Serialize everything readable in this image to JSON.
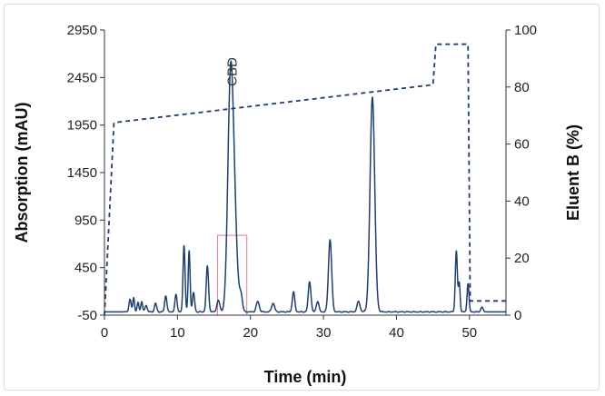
{
  "chart_data": {
    "type": "line",
    "title": "",
    "xlabel": "Time (min)",
    "ylabel_left": "Absorption (mAU)",
    "ylabel_right": "Eluent B (%)",
    "xlim": [
      0,
      55
    ],
    "ylim_left": [
      -50,
      2950
    ],
    "ylim_right": [
      0,
      100
    ],
    "x_ticks": [
      "0",
      "10",
      "20",
      "30",
      "40",
      "50"
    ],
    "y_left_ticks": [
      "-50",
      "450",
      "950",
      "1450",
      "1950",
      "2450",
      "2950"
    ],
    "y_right_ticks": [
      "0",
      "20",
      "40",
      "60",
      "80",
      "100"
    ],
    "grid": false,
    "annotations": [
      {
        "text": "CBD",
        "x": 17.5,
        "y": 2510,
        "rotation": -90
      }
    ],
    "highlight_box": {
      "x0": 15.5,
      "x1": 19.5,
      "y0": -50,
      "y1": 790,
      "color": "#e87a8a"
    },
    "series": [
      {
        "axis": "left",
        "style": "solid",
        "color": "#1f3f6e",
        "peaks": [
          {
            "x": 3.5,
            "h": 130,
            "w": 0.15
          },
          {
            "x": 4.0,
            "h": 150,
            "w": 0.12
          },
          {
            "x": 4.6,
            "h": 100,
            "w": 0.12
          },
          {
            "x": 5.1,
            "h": 110,
            "w": 0.12
          },
          {
            "x": 5.7,
            "h": 70,
            "w": 0.15
          },
          {
            "x": 7.0,
            "h": 90,
            "w": 0.15
          },
          {
            "x": 8.4,
            "h": 170,
            "w": 0.15
          },
          {
            "x": 9.8,
            "h": 180,
            "w": 0.15
          },
          {
            "x": 10.9,
            "h": 700,
            "w": 0.14
          },
          {
            "x": 11.6,
            "h": 640,
            "w": 0.13
          },
          {
            "x": 12.2,
            "h": 200,
            "w": 0.15
          },
          {
            "x": 14.1,
            "h": 480,
            "w": 0.16
          },
          {
            "x": 15.6,
            "h": 120,
            "w": 0.2
          },
          {
            "x": 17.2,
            "h": 1780,
            "w": 0.35
          },
          {
            "x": 17.65,
            "h": 1300,
            "w": 0.42
          },
          {
            "x": 18.7,
            "h": 160,
            "w": 0.2
          },
          {
            "x": 21.0,
            "h": 110,
            "w": 0.2
          },
          {
            "x": 23.1,
            "h": 90,
            "w": 0.2
          },
          {
            "x": 25.9,
            "h": 210,
            "w": 0.17
          },
          {
            "x": 28.1,
            "h": 320,
            "w": 0.18
          },
          {
            "x": 29.2,
            "h": 110,
            "w": 0.18
          },
          {
            "x": 30.9,
            "h": 760,
            "w": 0.22
          },
          {
            "x": 34.8,
            "h": 110,
            "w": 0.2
          },
          {
            "x": 36.7,
            "h": 2260,
            "w": 0.32
          },
          {
            "x": 48.2,
            "h": 640,
            "w": 0.14
          },
          {
            "x": 48.6,
            "h": 300,
            "w": 0.12
          },
          {
            "x": 49.8,
            "h": 300,
            "w": 0.13
          },
          {
            "x": 51.7,
            "h": 50,
            "w": 0.15
          }
        ]
      },
      {
        "axis": "right",
        "style": "dashed",
        "color": "#1f3f6e",
        "x": [
          0,
          1.3,
          45,
          45.4,
          49.8,
          50.1,
          55
        ],
        "y": [
          0,
          67.5,
          80.8,
          95,
          95,
          5,
          5
        ]
      }
    ]
  }
}
